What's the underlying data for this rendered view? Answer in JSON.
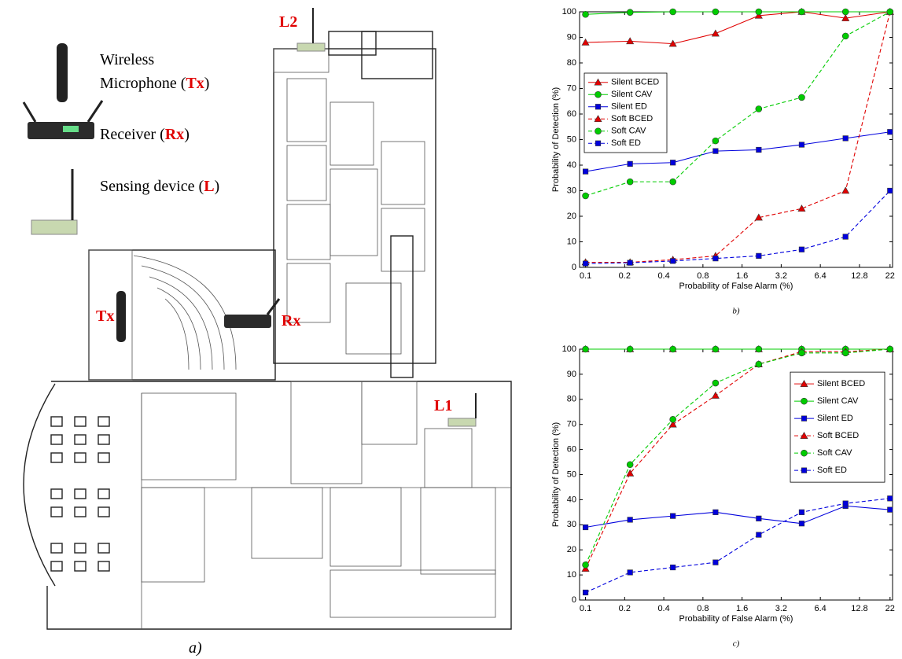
{
  "figure_a": {
    "caption": "a)",
    "device_legend": [
      {
        "lines": [
          "Wireless",
          "Microphone ("
        ],
        "code": "Tx",
        "suffix": ")"
      },
      {
        "lines": [
          "Receiver ("
        ],
        "code": "Rx",
        "suffix": ")"
      },
      {
        "lines": [
          "Sensing device ("
        ],
        "code": "L",
        "suffix": ")"
      }
    ],
    "map_labels": [
      "L2",
      "Tx",
      "Rx",
      "L1"
    ]
  },
  "chart_data": [
    {
      "type": "line",
      "caption": "b)",
      "x_label": "Probability of False Alarm (%)",
      "y_label": "Probability of Detection (%)",
      "x_scale": "log",
      "xlim": [
        0.09,
        23
      ],
      "xticks": [
        0.1,
        0.2,
        0.4,
        0.8,
        1.6,
        3.2,
        6.4,
        12.8,
        22
      ],
      "ylim": [
        0,
        100
      ],
      "yticks": [
        0,
        10,
        20,
        30,
        40,
        50,
        60,
        70,
        80,
        90,
        100
      ],
      "legend": "center left",
      "x": [
        0.1,
        0.22,
        0.47,
        1,
        2.15,
        4.6,
        10,
        22
      ],
      "series": [
        {
          "name": "Silent BCED",
          "color": "#e00000",
          "marker": "triangle",
          "dashed": false,
          "values": [
            88,
            88.5,
            87.5,
            91.5,
            98.5,
            100,
            97.5,
            100
          ]
        },
        {
          "name": "Silent CAV",
          "color": "#00cc00",
          "marker": "circle",
          "dashed": false,
          "values": [
            99,
            99.8,
            100,
            100,
            100,
            100,
            100,
            100
          ]
        },
        {
          "name": "Silent ED",
          "color": "#0000dd",
          "marker": "square",
          "dashed": false,
          "values": [
            37.5,
            40.5,
            41,
            45.5,
            46,
            48,
            50.5,
            53
          ]
        },
        {
          "name": "Soft BCED",
          "color": "#e00000",
          "marker": "triangle",
          "dashed": true,
          "values": [
            2,
            2,
            3,
            4.5,
            19.5,
            23,
            30,
            100
          ]
        },
        {
          "name": "Soft CAV",
          "color": "#00cc00",
          "marker": "circle",
          "dashed": true,
          "values": [
            28,
            33.5,
            33.5,
            49.5,
            62,
            66.5,
            90.5,
            100
          ]
        },
        {
          "name": "Soft ED",
          "color": "#0000dd",
          "marker": "square",
          "dashed": true,
          "values": [
            1.5,
            1.8,
            2.5,
            3.5,
            4.5,
            7,
            12,
            30
          ]
        }
      ]
    },
    {
      "type": "line",
      "caption": "c)",
      "x_label": "Probability of False Alarm (%)",
      "y_label": "Probability of Detection (%)",
      "x_scale": "log",
      "xlim": [
        0.09,
        23
      ],
      "xticks": [
        0.1,
        0.2,
        0.4,
        0.8,
        1.6,
        3.2,
        6.4,
        12.8,
        22
      ],
      "ylim": [
        0,
        100
      ],
      "yticks": [
        0,
        10,
        20,
        30,
        40,
        50,
        60,
        70,
        80,
        90,
        100
      ],
      "legend": "center right",
      "x": [
        0.1,
        0.22,
        0.47,
        1,
        2.15,
        4.6,
        10,
        22
      ],
      "series": [
        {
          "name": "Silent BCED",
          "color": "#e00000",
          "marker": "triangle",
          "dashed": false,
          "values": [
            100,
            100,
            100,
            100,
            100,
            100,
            100,
            100
          ]
        },
        {
          "name": "Silent CAV",
          "color": "#00cc00",
          "marker": "circle",
          "dashed": false,
          "values": [
            100,
            100,
            100,
            100,
            100,
            100,
            100,
            100
          ]
        },
        {
          "name": "Silent ED",
          "color": "#0000dd",
          "marker": "square",
          "dashed": false,
          "values": [
            29,
            32,
            33.5,
            35,
            32.5,
            30.5,
            37.5,
            36
          ]
        },
        {
          "name": "Soft BCED",
          "color": "#e00000",
          "marker": "triangle",
          "dashed": true,
          "values": [
            12.5,
            50.5,
            70,
            81.5,
            94,
            99,
            99,
            100
          ]
        },
        {
          "name": "Soft CAV",
          "color": "#00cc00",
          "marker": "circle",
          "dashed": true,
          "values": [
            14,
            54,
            72,
            86.5,
            94,
            98.5,
            98.5,
            100
          ]
        },
        {
          "name": "Soft ED",
          "color": "#0000dd",
          "marker": "square",
          "dashed": true,
          "values": [
            3,
            11,
            13,
            15,
            26,
            35,
            38.5,
            40.5
          ]
        }
      ]
    }
  ]
}
